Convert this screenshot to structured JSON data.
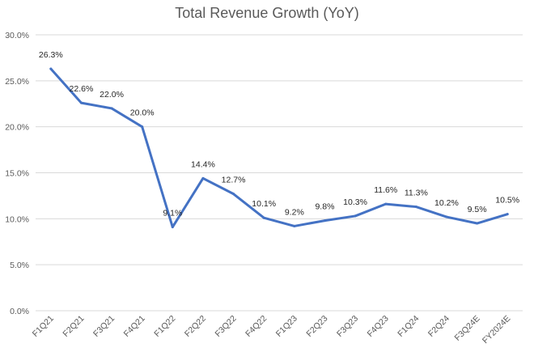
{
  "chart_data": {
    "type": "line",
    "title": "Total Revenue Growth (YoY)",
    "xlabel": "",
    "ylabel": "",
    "categories": [
      "F1Q21",
      "F2Q21",
      "F3Q21",
      "F4Q21",
      "F1Q22",
      "F2Q22",
      "F3Q22",
      "F4Q22",
      "F1Q23",
      "F2Q23",
      "F3Q23",
      "F4Q23",
      "F1Q24",
      "F2Q24",
      "F3Q24E",
      "FY2024E"
    ],
    "series": [
      {
        "values": [
          26.3,
          22.6,
          22.0,
          20.0,
          9.1,
          14.4,
          12.7,
          10.1,
          9.2,
          9.8,
          10.3,
          11.6,
          11.3,
          10.2,
          9.5,
          10.5
        ],
        "data_labels": [
          "26.3%",
          "22.6%",
          "22.0%",
          "20.0%",
          "9.1%",
          "14.4%",
          "12.7%",
          "10.1%",
          "9.2%",
          "9.8%",
          "10.3%",
          "11.6%",
          "11.3%",
          "10.2%",
          "9.5%",
          "10.5%"
        ],
        "color": "#4472c4"
      }
    ],
    "ylim": [
      0,
      30
    ],
    "yticks": [
      "0.0%",
      "5.0%",
      "10.0%",
      "15.0%",
      "20.0%",
      "25.0%",
      "30.0%"
    ],
    "grid": true,
    "legend": "none"
  }
}
